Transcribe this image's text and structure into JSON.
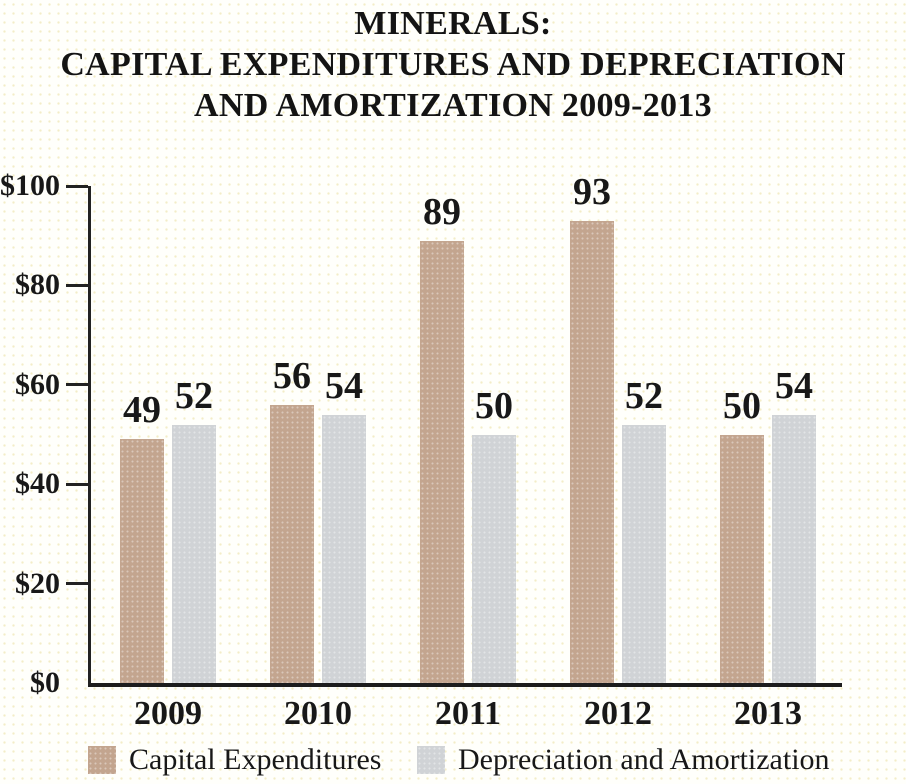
{
  "title": {
    "line1": "MINERALS:",
    "line2": "CAPITAL EXPENDITURES AND DEPRECIATION",
    "line3": "AND AMORTIZATION 2009-2013"
  },
  "chart_data": {
    "type": "bar",
    "title": "MINERALS: CAPITAL EXPENDITURES AND DEPRECIATION AND AMORTIZATION 2009-2013",
    "categories": [
      "2009",
      "2010",
      "2011",
      "2012",
      "2013"
    ],
    "series": [
      {
        "name": "Capital Expenditures",
        "color": "#c3a58f",
        "values": [
          49,
          56,
          89,
          93,
          50
        ]
      },
      {
        "name": "Depreciation and Amortization",
        "color": "#d0d3d6",
        "values": [
          52,
          54,
          50,
          52,
          54
        ]
      }
    ],
    "ylim": [
      0,
      100
    ],
    "y_ticks": [
      {
        "label": "$0",
        "value": 0,
        "tick": false
      },
      {
        "label": "$20",
        "value": 20,
        "tick": true
      },
      {
        "label": "$40",
        "value": 40,
        "tick": true
      },
      {
        "label": "$60",
        "value": 60,
        "tick": true
      },
      {
        "label": "$80",
        "value": 80,
        "tick": true
      },
      {
        "label": "$100",
        "value": 100,
        "tick": true
      }
    ],
    "grid": false,
    "value_labels": true,
    "legend_position": "bottom",
    "axis_color": "#222222",
    "text_color": "#181818",
    "background_color": "#fffffb"
  }
}
